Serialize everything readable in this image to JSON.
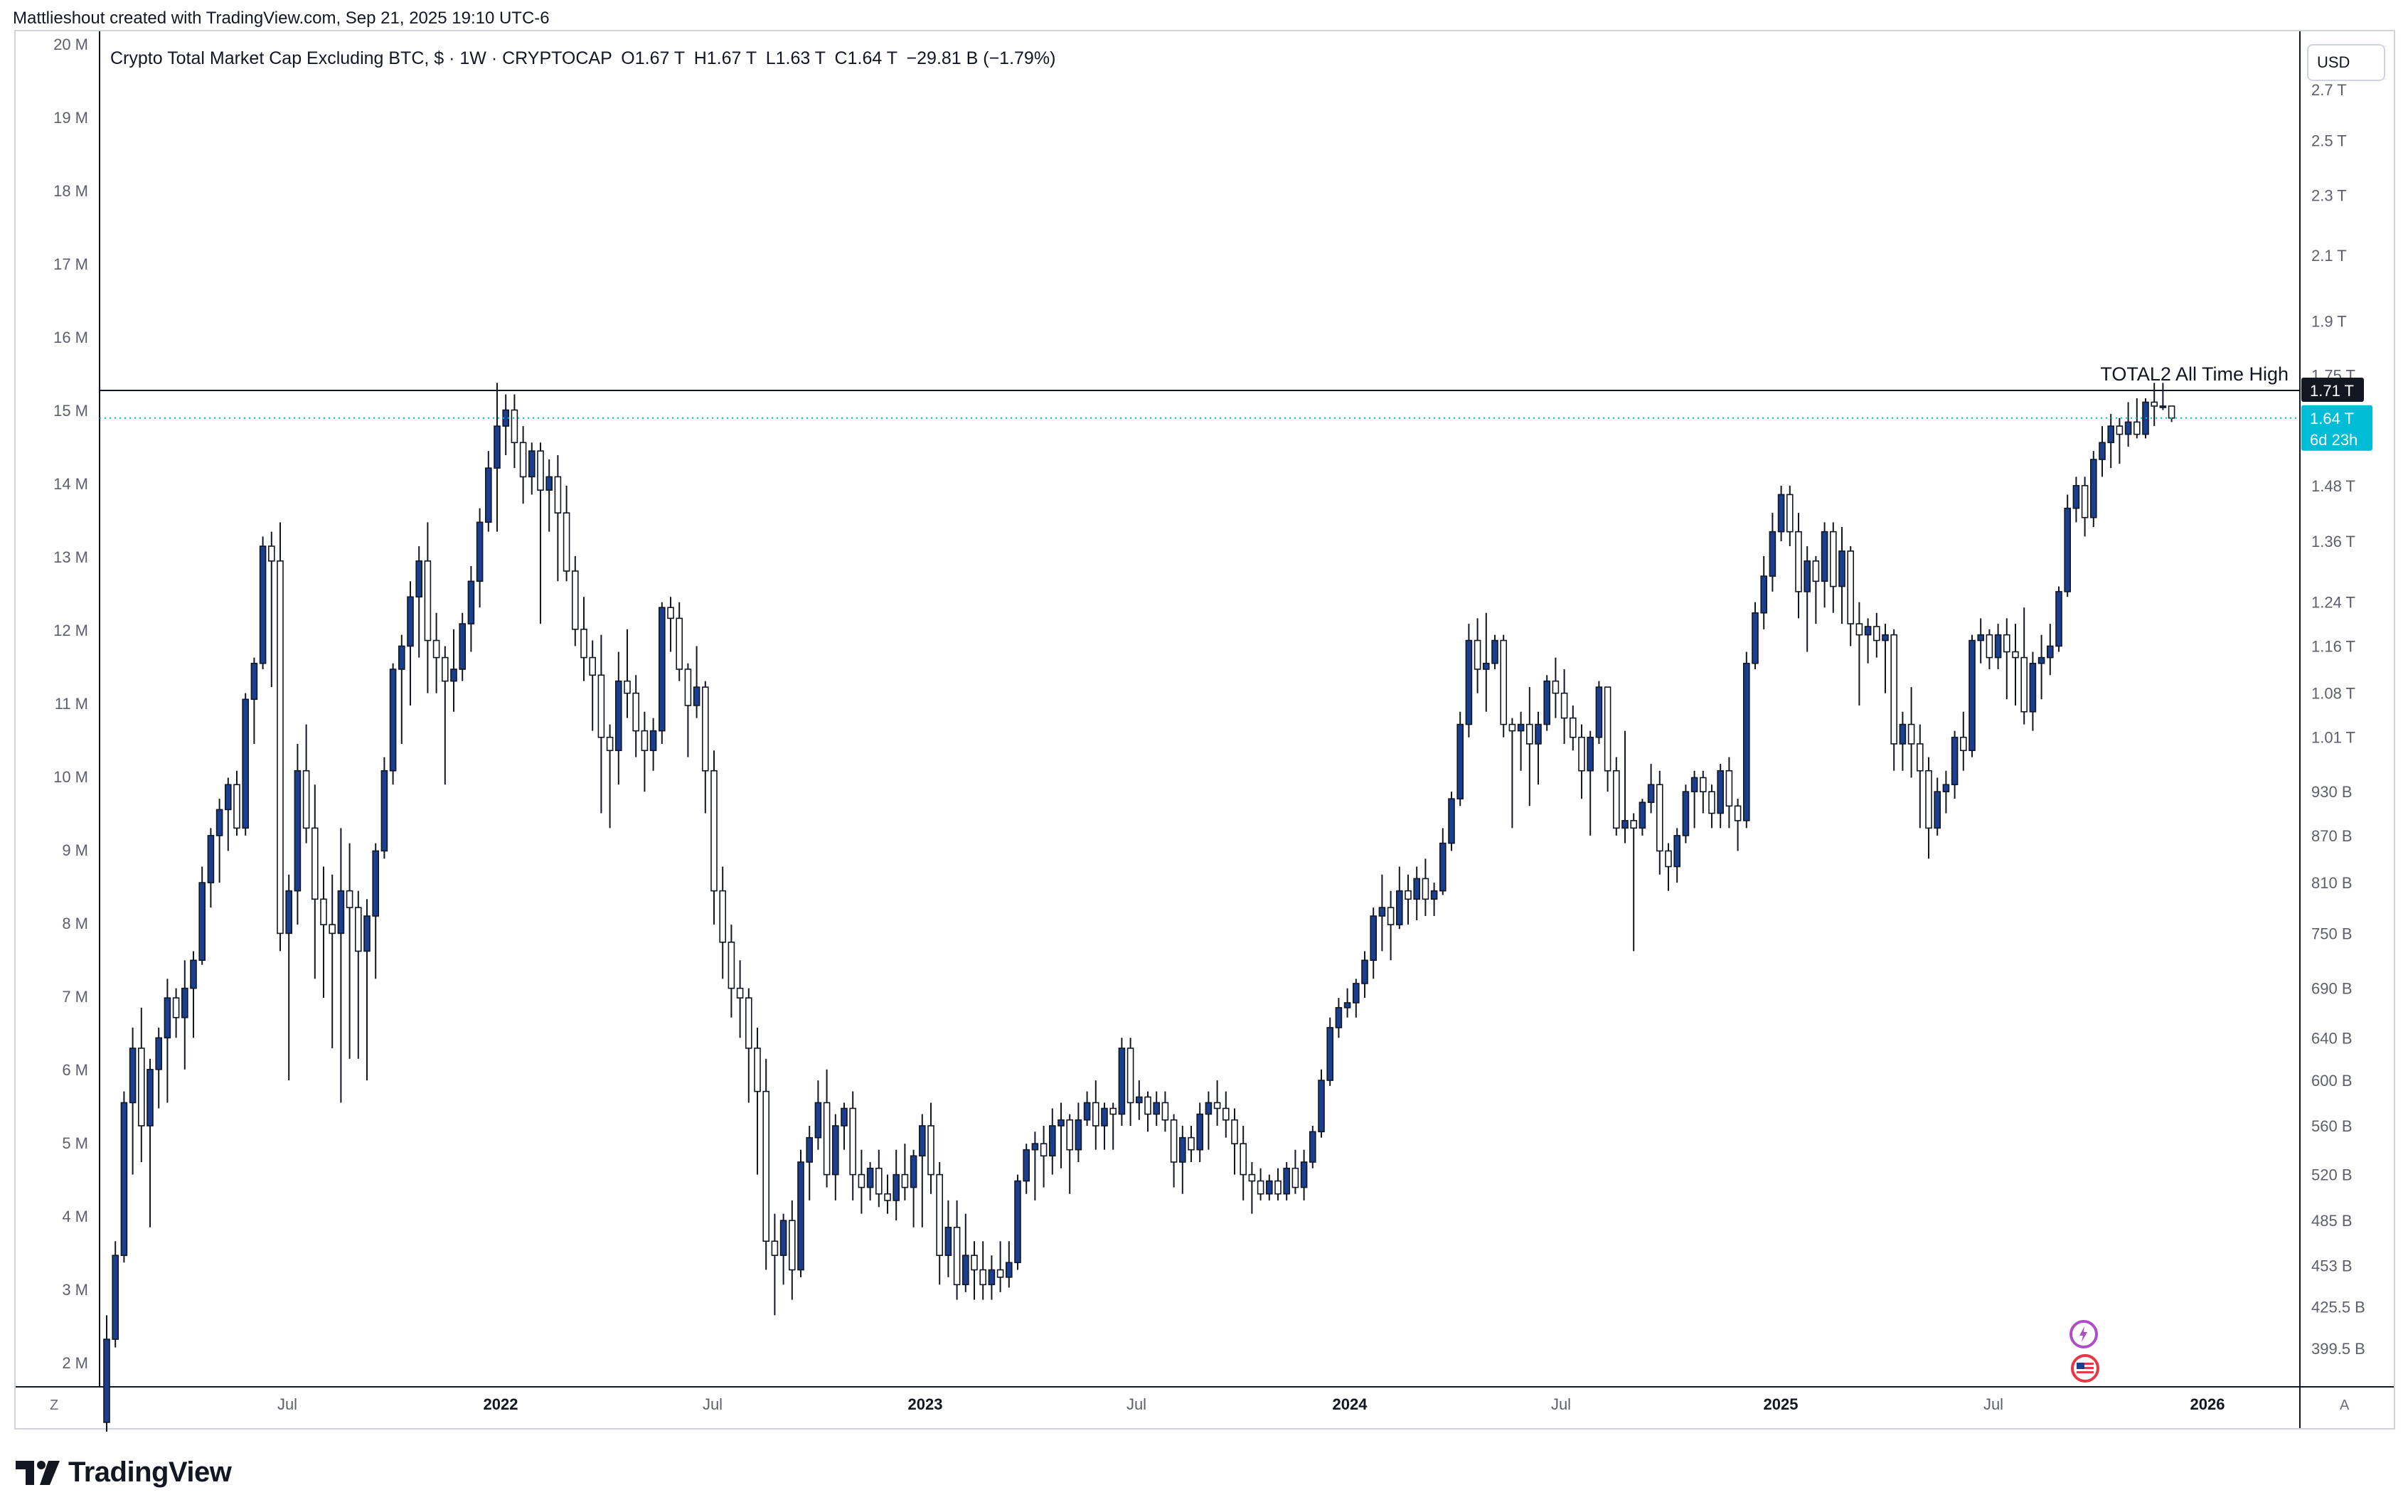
{
  "credit": "Mattlieshout created with TradingView.com, Sep 21, 2025 19:10 UTC-6",
  "legend": {
    "title": "Crypto Total Market Cap Excluding BTC, $ · 1W · CRYPTOCAP",
    "o_label": "O",
    "o": "1.67 T",
    "h_label": "H",
    "h": "1.67 T",
    "l_label": "L",
    "l": "1.63 T",
    "c_label": "C",
    "c": "1.64 T",
    "change": "−29.81 B (−1.79%)"
  },
  "unit_button": "USD",
  "corner_left": "Z",
  "corner_right": "A",
  "logo_text": "TradingView",
  "colors": {
    "up": "#1a3f91",
    "down": "#ffffff",
    "wick": "#131722",
    "last_price": "#00bcd4",
    "ath_line": "#131722"
  },
  "chart_data": {
    "type": "candlestick",
    "interval": "1W",
    "title": "Crypto Total Market Cap Excluding BTC, $ · 1W · CRYPTOCAP",
    "annotation": "TOTAL2 All Time High",
    "ath_level": "1.71 T",
    "last_price": "1.64 T",
    "countdown": "6d 23h",
    "left_axis_ticks": [
      "2 M",
      "3 M",
      "4 M",
      "5 M",
      "6 M",
      "7 M",
      "8 M",
      "9 M",
      "10 M",
      "11 M",
      "12 M",
      "13 M",
      "14 M",
      "15 M",
      "16 M",
      "17 M",
      "18 M",
      "19 M",
      "20 M"
    ],
    "right_axis_ticks": [
      "399.5 B",
      "425.5 B",
      "453 B",
      "485 B",
      "520 B",
      "560 B",
      "600 B",
      "640 B",
      "690 B",
      "750 B",
      "810 B",
      "870 B",
      "930 B",
      "1.01 T",
      "1.08 T",
      "1.16 T",
      "1.24 T",
      "1.36 T",
      "1.48 T",
      "1.75 T",
      "1.9 T",
      "2.1 T",
      "2.3 T",
      "2.5 T",
      "2.7 T"
    ],
    "x_ticks": [
      "Jul",
      "2022",
      "Jul",
      "2023",
      "Jul",
      "2024",
      "Jul",
      "2025",
      "Jul",
      "2026"
    ],
    "x_tick_bold": [
      false,
      true,
      false,
      true,
      false,
      true,
      false,
      true,
      false,
      true
    ],
    "ohlc_billions": [
      [
        357,
        420,
        352,
        405
      ],
      [
        405,
        470,
        400,
        460
      ],
      [
        460,
        590,
        455,
        580
      ],
      [
        580,
        650,
        520,
        630
      ],
      [
        630,
        670,
        530,
        560
      ],
      [
        560,
        620,
        480,
        610
      ],
      [
        610,
        650,
        575,
        640
      ],
      [
        640,
        700,
        580,
        680
      ],
      [
        680,
        690,
        640,
        660
      ],
      [
        660,
        720,
        610,
        690
      ],
      [
        690,
        730,
        640,
        720
      ],
      [
        720,
        830,
        715,
        810
      ],
      [
        810,
        880,
        780,
        870
      ],
      [
        870,
        920,
        810,
        905
      ],
      [
        905,
        950,
        850,
        940
      ],
      [
        940,
        960,
        870,
        880
      ],
      [
        880,
        1080,
        870,
        1070
      ],
      [
        1070,
        1140,
        1000,
        1130
      ],
      [
        1130,
        1370,
        1120,
        1350
      ],
      [
        1350,
        1380,
        1090,
        1320
      ],
      [
        1320,
        1400,
        730,
        750
      ],
      [
        750,
        820,
        600,
        800
      ],
      [
        800,
        1000,
        760,
        960
      ],
      [
        960,
        1030,
        860,
        880
      ],
      [
        880,
        940,
        700,
        790
      ],
      [
        790,
        830,
        680,
        760
      ],
      [
        760,
        820,
        630,
        750
      ],
      [
        750,
        880,
        580,
        800
      ],
      [
        800,
        860,
        620,
        780
      ],
      [
        780,
        800,
        620,
        730
      ],
      [
        730,
        790,
        600,
        770
      ],
      [
        770,
        860,
        700,
        850
      ],
      [
        850,
        980,
        840,
        960
      ],
      [
        960,
        1130,
        940,
        1120
      ],
      [
        1120,
        1180,
        1000,
        1160
      ],
      [
        1160,
        1280,
        1060,
        1250
      ],
      [
        1250,
        1350,
        1140,
        1320
      ],
      [
        1320,
        1400,
        1080,
        1170
      ],
      [
        1170,
        1220,
        1080,
        1140
      ],
      [
        1140,
        1160,
        940,
        1100
      ],
      [
        1100,
        1190,
        1050,
        1120
      ],
      [
        1120,
        1220,
        1100,
        1200
      ],
      [
        1200,
        1310,
        1150,
        1280
      ],
      [
        1280,
        1430,
        1230,
        1400
      ],
      [
        1400,
        1560,
        1380,
        1520
      ],
      [
        1520,
        1730,
        1380,
        1620
      ],
      [
        1620,
        1700,
        1550,
        1660
      ],
      [
        1660,
        1700,
        1520,
        1580
      ],
      [
        1580,
        1620,
        1440,
        1500
      ],
      [
        1500,
        1580,
        1460,
        1560
      ],
      [
        1560,
        1580,
        1200,
        1470
      ],
      [
        1470,
        1540,
        1380,
        1500
      ],
      [
        1500,
        1550,
        1280,
        1420
      ],
      [
        1420,
        1480,
        1280,
        1300
      ],
      [
        1300,
        1330,
        1160,
        1190
      ],
      [
        1190,
        1250,
        1100,
        1140
      ],
      [
        1140,
        1170,
        1020,
        1110
      ],
      [
        1110,
        1180,
        900,
        1010
      ],
      [
        1010,
        1030,
        880,
        990
      ],
      [
        990,
        1150,
        940,
        1100
      ],
      [
        1100,
        1190,
        1040,
        1080
      ],
      [
        1080,
        1110,
        980,
        1020
      ],
      [
        1020,
        1050,
        930,
        990
      ],
      [
        990,
        1040,
        960,
        1020
      ],
      [
        1020,
        1240,
        1000,
        1230
      ],
      [
        1230,
        1250,
        1150,
        1210
      ],
      [
        1210,
        1240,
        1100,
        1120
      ],
      [
        1120,
        1130,
        980,
        1060
      ],
      [
        1060,
        1160,
        1040,
        1090
      ],
      [
        1090,
        1100,
        900,
        960
      ],
      [
        960,
        990,
        760,
        800
      ],
      [
        800,
        830,
        700,
        740
      ],
      [
        740,
        760,
        660,
        690
      ],
      [
        690,
        720,
        640,
        680
      ],
      [
        680,
        690,
        580,
        630
      ],
      [
        630,
        650,
        520,
        590
      ],
      [
        590,
        620,
        450,
        470
      ],
      [
        470,
        490,
        420,
        460
      ],
      [
        460,
        490,
        440,
        485
      ],
      [
        485,
        500,
        430,
        450
      ],
      [
        450,
        540,
        445,
        530
      ],
      [
        530,
        560,
        500,
        550
      ],
      [
        550,
        600,
        540,
        580
      ],
      [
        580,
        610,
        510,
        520
      ],
      [
        520,
        570,
        500,
        560
      ],
      [
        560,
        580,
        540,
        575
      ],
      [
        575,
        590,
        500,
        520
      ],
      [
        520,
        540,
        490,
        510
      ],
      [
        510,
        530,
        500,
        525
      ],
      [
        525,
        540,
        495,
        505
      ],
      [
        505,
        520,
        490,
        500
      ],
      [
        500,
        540,
        485,
        520
      ],
      [
        520,
        545,
        500,
        510
      ],
      [
        510,
        540,
        480,
        535
      ],
      [
        535,
        570,
        480,
        560
      ],
      [
        560,
        580,
        505,
        520
      ],
      [
        520,
        530,
        440,
        460
      ],
      [
        460,
        500,
        445,
        480
      ],
      [
        480,
        500,
        430,
        440
      ],
      [
        440,
        490,
        435,
        460
      ],
      [
        460,
        470,
        430,
        450
      ],
      [
        450,
        470,
        430,
        440
      ],
      [
        440,
        460,
        430,
        450
      ],
      [
        450,
        470,
        435,
        445
      ],
      [
        445,
        470,
        438,
        455
      ],
      [
        455,
        520,
        450,
        515
      ],
      [
        515,
        545,
        505,
        540
      ],
      [
        540,
        555,
        500,
        545
      ],
      [
        545,
        560,
        510,
        535
      ],
      [
        535,
        575,
        520,
        560
      ],
      [
        560,
        580,
        525,
        565
      ],
      [
        565,
        570,
        505,
        540
      ],
      [
        540,
        580,
        530,
        565
      ],
      [
        565,
        590,
        560,
        580
      ],
      [
        580,
        600,
        540,
        560
      ],
      [
        560,
        580,
        540,
        575
      ],
      [
        575,
        580,
        540,
        570
      ],
      [
        570,
        640,
        560,
        630
      ],
      [
        630,
        640,
        560,
        580
      ],
      [
        580,
        600,
        565,
        585
      ],
      [
        585,
        590,
        555,
        570
      ],
      [
        570,
        590,
        560,
        580
      ],
      [
        580,
        590,
        555,
        565
      ],
      [
        565,
        570,
        510,
        530
      ],
      [
        530,
        560,
        505,
        550
      ],
      [
        550,
        560,
        530,
        540
      ],
      [
        540,
        580,
        530,
        570
      ],
      [
        570,
        590,
        540,
        580
      ],
      [
        580,
        600,
        560,
        575
      ],
      [
        575,
        590,
        550,
        565
      ],
      [
        565,
        575,
        520,
        545
      ],
      [
        545,
        560,
        500,
        520
      ],
      [
        520,
        530,
        490,
        515
      ],
      [
        515,
        525,
        500,
        505
      ],
      [
        505,
        520,
        500,
        515
      ],
      [
        515,
        525,
        500,
        505
      ],
      [
        505,
        530,
        500,
        525
      ],
      [
        525,
        540,
        505,
        510
      ],
      [
        510,
        540,
        500,
        530
      ],
      [
        530,
        560,
        525,
        555
      ],
      [
        555,
        610,
        550,
        600
      ],
      [
        600,
        660,
        595,
        650
      ],
      [
        650,
        680,
        640,
        670
      ],
      [
        670,
        690,
        660,
        675
      ],
      [
        675,
        700,
        660,
        695
      ],
      [
        695,
        730,
        680,
        720
      ],
      [
        720,
        780,
        700,
        770
      ],
      [
        770,
        820,
        730,
        780
      ],
      [
        780,
        800,
        720,
        760
      ],
      [
        760,
        830,
        755,
        800
      ],
      [
        800,
        820,
        760,
        790
      ],
      [
        790,
        830,
        765,
        815
      ],
      [
        815,
        840,
        770,
        790
      ],
      [
        790,
        810,
        770,
        800
      ],
      [
        800,
        880,
        795,
        860
      ],
      [
        860,
        930,
        850,
        920
      ],
      [
        920,
        1050,
        910,
        1030
      ],
      [
        1030,
        1200,
        1010,
        1170
      ],
      [
        1170,
        1210,
        1080,
        1120
      ],
      [
        1120,
        1220,
        1050,
        1130
      ],
      [
        1130,
        1180,
        1120,
        1170
      ],
      [
        1170,
        1180,
        1010,
        1030
      ],
      [
        1030,
        1040,
        880,
        1020
      ],
      [
        1020,
        1050,
        960,
        1030
      ],
      [
        1030,
        1090,
        910,
        1000
      ],
      [
        1000,
        1050,
        940,
        1030
      ],
      [
        1030,
        1110,
        1020,
        1100
      ],
      [
        1100,
        1140,
        1040,
        1080
      ],
      [
        1080,
        1120,
        1000,
        1040
      ],
      [
        1040,
        1060,
        990,
        1010
      ],
      [
        1010,
        1030,
        920,
        960
      ],
      [
        960,
        1020,
        870,
        1010
      ],
      [
        1010,
        1100,
        1000,
        1090
      ],
      [
        1090,
        1090,
        930,
        960
      ],
      [
        960,
        980,
        870,
        880
      ],
      [
        880,
        1020,
        860,
        890
      ],
      [
        890,
        900,
        730,
        880
      ],
      [
        880,
        920,
        870,
        915
      ],
      [
        915,
        970,
        900,
        940
      ],
      [
        940,
        960,
        820,
        850
      ],
      [
        850,
        860,
        800,
        830
      ],
      [
        830,
        880,
        810,
        870
      ],
      [
        870,
        940,
        860,
        930
      ],
      [
        930,
        960,
        880,
        950
      ],
      [
        950,
        960,
        900,
        930
      ],
      [
        930,
        940,
        880,
        900
      ],
      [
        900,
        970,
        880,
        960
      ],
      [
        960,
        980,
        880,
        910
      ],
      [
        910,
        920,
        850,
        890
      ],
      [
        890,
        1150,
        880,
        1130
      ],
      [
        1130,
        1240,
        1120,
        1220
      ],
      [
        1220,
        1330,
        1190,
        1290
      ],
      [
        1290,
        1420,
        1260,
        1380
      ],
      [
        1380,
        1480,
        1360,
        1460
      ],
      [
        1460,
        1480,
        1350,
        1380
      ],
      [
        1380,
        1420,
        1210,
        1260
      ],
      [
        1260,
        1350,
        1150,
        1320
      ],
      [
        1320,
        1330,
        1200,
        1280
      ],
      [
        1280,
        1400,
        1230,
        1380
      ],
      [
        1380,
        1400,
        1220,
        1270
      ],
      [
        1270,
        1390,
        1200,
        1340
      ],
      [
        1340,
        1350,
        1160,
        1200
      ],
      [
        1200,
        1240,
        1060,
        1180
      ],
      [
        1180,
        1210,
        1130,
        1195
      ],
      [
        1195,
        1220,
        1140,
        1170
      ],
      [
        1170,
        1200,
        1080,
        1180
      ],
      [
        1180,
        1190,
        960,
        1000
      ],
      [
        1000,
        1050,
        960,
        1030
      ],
      [
        1030,
        1090,
        950,
        1000
      ],
      [
        1000,
        1030,
        880,
        960
      ],
      [
        960,
        980,
        840,
        880
      ],
      [
        880,
        950,
        870,
        930
      ],
      [
        930,
        960,
        900,
        940
      ],
      [
        940,
        1020,
        920,
        1010
      ],
      [
        1010,
        1050,
        960,
        990
      ],
      [
        990,
        1180,
        980,
        1170
      ],
      [
        1170,
        1210,
        1130,
        1180
      ],
      [
        1180,
        1190,
        1120,
        1140
      ],
      [
        1140,
        1200,
        1120,
        1180
      ],
      [
        1180,
        1210,
        1070,
        1150
      ],
      [
        1150,
        1200,
        1060,
        1140
      ],
      [
        1140,
        1230,
        1030,
        1050
      ],
      [
        1050,
        1150,
        1020,
        1130
      ],
      [
        1130,
        1180,
        1070,
        1140
      ],
      [
        1140,
        1200,
        1110,
        1160
      ],
      [
        1160,
        1270,
        1150,
        1260
      ],
      [
        1260,
        1460,
        1250,
        1430
      ],
      [
        1430,
        1500,
        1400,
        1480
      ],
      [
        1480,
        1500,
        1370,
        1410
      ],
      [
        1410,
        1560,
        1390,
        1540
      ],
      [
        1540,
        1620,
        1500,
        1580
      ],
      [
        1580,
        1650,
        1520,
        1620
      ],
      [
        1620,
        1640,
        1530,
        1600
      ],
      [
        1600,
        1680,
        1570,
        1630
      ],
      [
        1630,
        1690,
        1590,
        1600
      ],
      [
        1600,
        1690,
        1590,
        1680
      ],
      [
        1680,
        1730,
        1620,
        1670
      ],
      [
        1670,
        1730,
        1660,
        1670
      ],
      [
        1670,
        1670,
        1630,
        1640
      ]
    ]
  }
}
